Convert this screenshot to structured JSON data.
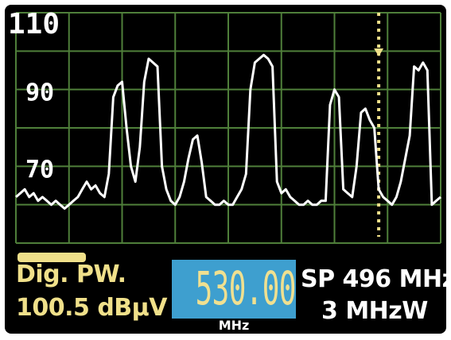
{
  "chart_data": {
    "type": "line",
    "title": "",
    "xlabel": "",
    "ylabel": "",
    "y_tick_labels": [
      "110",
      "90",
      "70"
    ],
    "ylim": [
      50,
      110
    ],
    "xlim": [
      448,
      544
    ],
    "grid": true,
    "marker_x": 530.0,
    "series": [
      {
        "x": [
          448,
          449,
          450,
          451,
          452,
          453,
          454,
          455,
          456,
          457,
          458,
          459,
          460,
          461,
          462,
          463,
          464,
          465,
          466,
          467,
          468,
          469,
          470,
          471,
          472,
          473,
          474,
          475,
          476,
          477,
          478,
          479,
          480,
          481,
          482,
          483,
          484,
          485,
          486,
          487,
          488,
          489,
          490,
          491,
          492,
          493,
          494,
          495,
          496,
          497,
          498,
          499,
          500,
          501,
          502,
          503,
          504,
          505,
          506,
          507,
          508,
          509,
          510,
          511,
          512,
          513,
          514,
          515,
          516,
          517,
          518,
          519,
          520,
          521,
          522,
          523,
          524,
          525,
          526,
          527,
          528,
          529,
          530,
          531,
          532,
          533,
          534,
          535,
          536,
          537,
          538,
          539,
          540,
          541,
          542,
          543,
          544
        ],
        "values": [
          62,
          63,
          64,
          62,
          63,
          61,
          62,
          61,
          60,
          61,
          60,
          59,
          60,
          61,
          62,
          64,
          66,
          64,
          65,
          63,
          62,
          68,
          88,
          91,
          92,
          80,
          70,
          66,
          75,
          92,
          98,
          97,
          96,
          70,
          64,
          61,
          60,
          62,
          66,
          72,
          77,
          78,
          71,
          62,
          61,
          60,
          60,
          61,
          60,
          60,
          62,
          64,
          68,
          90,
          97,
          98,
          99,
          98,
          96,
          66,
          63,
          64,
          62,
          61,
          60,
          60,
          61,
          60,
          60,
          61,
          61,
          86,
          90,
          88,
          64,
          63,
          62,
          70,
          84,
          85,
          82,
          80,
          64,
          62,
          61,
          60,
          62,
          66,
          72,
          78,
          96,
          95,
          97,
          95,
          60,
          61,
          62
        ]
      }
    ]
  },
  "display": {
    "mode_label": "Dig. PW.",
    "level_value": "100.5 dBµV",
    "center_frequency": "530.00",
    "frequency_unit": "MHz",
    "span_label": "SP 496 MHz",
    "rbw_label": "3 MHzW"
  },
  "colors": {
    "background": "#000000",
    "grid": "#4f7f3a",
    "trace": "#ffffff",
    "marker": "#f0e08a",
    "accent_text": "#f0e08a",
    "frequency_box": "#3e9fcf",
    "white_text": "#ffffff"
  }
}
